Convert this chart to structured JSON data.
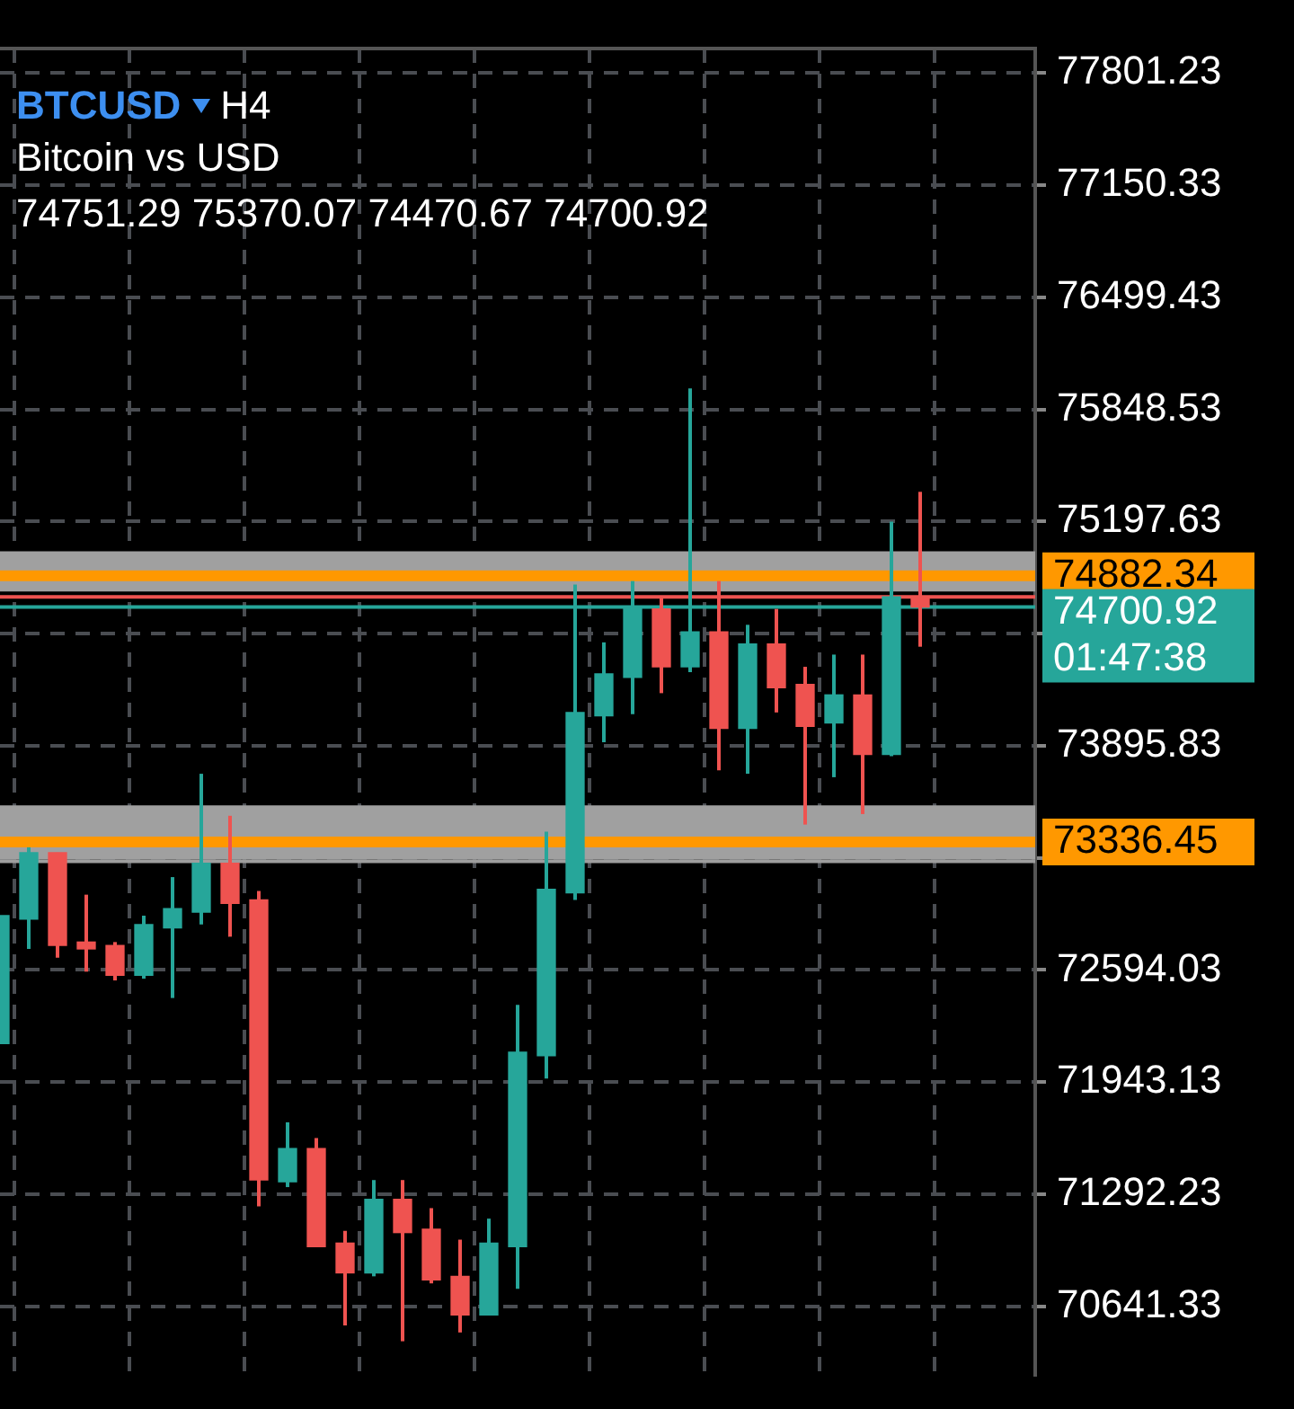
{
  "chart_data": {
    "type": "candlestick",
    "title": "BTCUSD",
    "subtitle": "Bitcoin vs USD",
    "annotations": [
      "H4",
      "74751.29 75370.07 74470.67 74700.92"
    ],
    "categories": [
      null,
      null,
      null,
      null,
      null,
      null,
      null,
      null,
      null,
      null,
      null,
      null,
      null,
      null,
      null,
      null,
      null,
      null,
      null,
      null,
      null,
      null,
      null,
      null,
      null,
      null,
      null,
      null,
      null,
      null,
      null,
      null,
      null,
      null,
      null,
      null,
      null
    ],
    "ohlc": [
      [
        72167,
        72909,
        72167,
        72909
      ],
      [
        72889,
        73306,
        72716,
        73275
      ],
      [
        73275,
        73275,
        72665,
        72736
      ],
      [
        72756,
        73031,
        72584,
        72716
      ],
      [
        72736,
        72756,
        72533,
        72563
      ],
      [
        72563,
        72909,
        72543,
        72858
      ],
      [
        72838,
        73133,
        72431,
        72950
      ],
      [
        72930,
        73733,
        72858,
        73214
      ],
      [
        73214,
        73489,
        72787,
        72981
      ],
      [
        73001,
        73052,
        71221,
        71374
      ],
      [
        71364,
        71709,
        71333,
        71557
      ],
      [
        71557,
        71618,
        70987,
        70987
      ],
      [
        71008,
        71079,
        70530,
        70835
      ],
      [
        70835,
        71374,
        70815,
        71262
      ],
      [
        71262,
        71374,
        70438,
        71069
      ],
      [
        71089,
        71211,
        70774,
        70794
      ],
      [
        70815,
        71028,
        70489,
        70591
      ],
      [
        70591,
        71150,
        70591,
        71008
      ],
      [
        70987,
        72391,
        70743,
        72116
      ],
      [
        72096,
        73397,
        71963,
        73062
      ],
      [
        73042,
        74832,
        73001,
        74089
      ],
      [
        74069,
        74496,
        73916,
        74313
      ],
      [
        74293,
        74852,
        74079,
        74700
      ],
      [
        74690,
        74760,
        74201,
        74354
      ],
      [
        74354,
        75970,
        74323,
        74557
      ],
      [
        74557,
        74852,
        73753,
        73997
      ],
      [
        73997,
        74598,
        73733,
        74486
      ],
      [
        74486,
        74690,
        74089,
        74232
      ],
      [
        74252,
        74354,
        73438,
        74008
      ],
      [
        74028,
        74425,
        73713,
        74191
      ],
      [
        74191,
        74425,
        73499,
        73845
      ],
      [
        73845,
        75197,
        73835,
        74761
      ],
      [
        74751.29,
        75370.07,
        74470.67,
        74700.92
      ],
      null,
      null,
      null,
      null
    ],
    "colors": [
      "#26a69a",
      "#26a69a",
      "#ef5350",
      "#ef5350",
      "#ef5350",
      "#26a69a",
      "#26a69a",
      "#26a69a",
      "#ef5350",
      "#ef5350",
      "#26a69a",
      "#ef5350",
      "#ef5350",
      "#26a69a",
      "#ef5350",
      "#ef5350",
      "#ef5350",
      "#26a69a",
      "#26a69a",
      "#26a69a",
      "#26a69a",
      "#26a69a",
      "#26a69a",
      "#ef5350",
      "#26a69a",
      "#ef5350",
      "#26a69a",
      "#ef5350",
      "#ef5350",
      "#26a69a",
      "#ef5350",
      "#26a69a",
      "#ef5350",
      null,
      null,
      null,
      null
    ],
    "ylim": [
      70245,
      77944
    ],
    "yticks": [
      70641.33,
      71292.23,
      71943.13,
      72594.03,
      {
        "value": 73244.93,
        "label": null
      },
      73895.83,
      {
        "value": 74546.73,
        "label": null
      },
      75197.63,
      75848.53,
      76499.43,
      77150.33,
      77801.23
    ],
    "grid": true,
    "tick_labels": "y",
    "bands": [
      {
        "axis": "y",
        "from": 74791,
        "to": 75025,
        "color": "#a0a0a0"
      },
      {
        "axis": "y",
        "from": 73235,
        "to": 73550,
        "color": "#a0a0a0"
      }
    ],
    "ref_lines": [
      {
        "axis": "y",
        "value": 74882.34,
        "label": "74882.34",
        "color": "#ff9800"
      },
      {
        "axis": "y",
        "value": 73336.45,
        "label": "73336.45",
        "color": "#ff9800"
      },
      {
        "axis": "y",
        "value": 74760,
        "color": "#ef5350"
      },
      {
        "axis": "y",
        "value": 74700.92,
        "label": "74700.92\n01:47:38",
        "color": "#26a69a"
      },
      {
        "axis": "y",
        "value": 73225,
        "color": "#9e9e9e"
      }
    ]
  }
}
